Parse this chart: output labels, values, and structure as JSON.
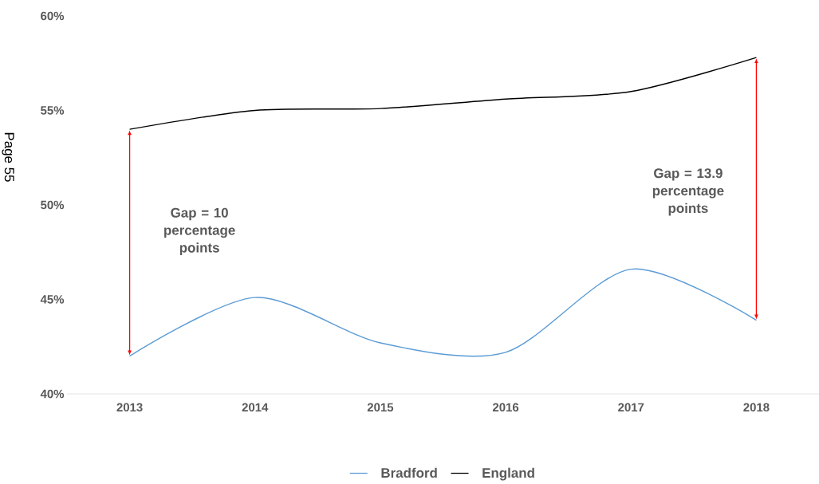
{
  "chart_data": {
    "type": "line",
    "categories": [
      "2013",
      "2014",
      "2015",
      "2016",
      "2017",
      "2018"
    ],
    "series": [
      {
        "name": "Bradford",
        "color": "#5b9bd5",
        "values": [
          42.0,
          45.1,
          42.7,
          42.2,
          46.6,
          43.9
        ]
      },
      {
        "name": "England",
        "color": "#000000",
        "values": [
          54.0,
          55.0,
          55.1,
          55.6,
          56.0,
          57.8
        ]
      }
    ],
    "ylim": [
      40,
      60
    ],
    "yticks": [
      {
        "value": 40,
        "label": "40%"
      },
      {
        "value": 45,
        "label": "45%"
      },
      {
        "value": 50,
        "label": "50%"
      },
      {
        "value": 55,
        "label": "55%"
      },
      {
        "value": 60,
        "label": "60%"
      }
    ],
    "legend": "bottom",
    "marker": "none",
    "line_style": "solid",
    "annotations": [
      "Gap = 10 percentage points",
      "Gap = 13.9 percentage points",
      "Page 55"
    ]
  }
}
